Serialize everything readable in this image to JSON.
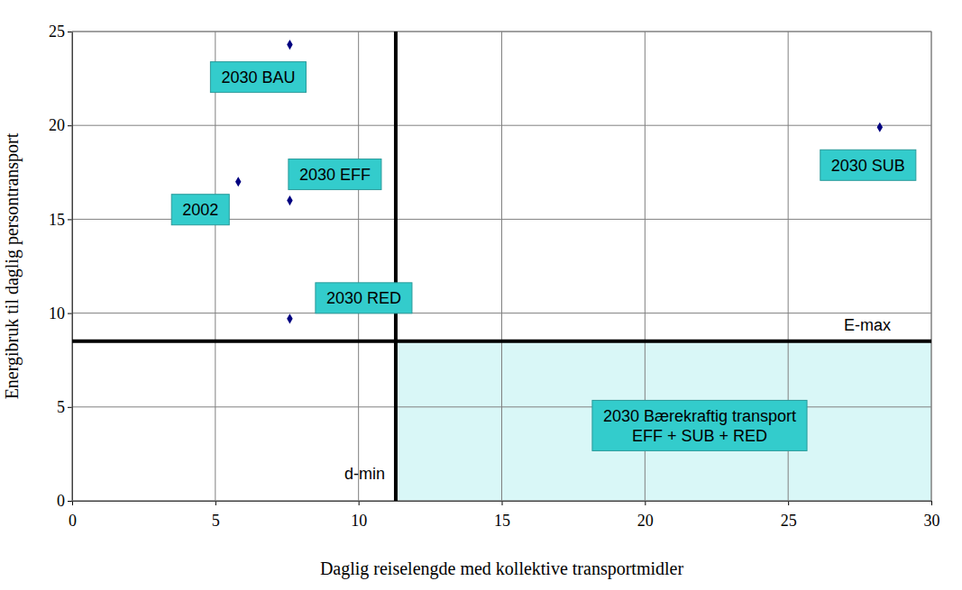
{
  "chart_data": {
    "type": "scatter",
    "x_label": "Daglig reiselengde med kollektive transportmidler",
    "y_label": "Energibruk til daglig persontransport",
    "x": [
      5.8,
      7.6,
      7.6,
      7.6,
      28.2
    ],
    "values": [
      17.0,
      24.3,
      16.0,
      9.7,
      19.9
    ],
    "point_labels": [
      "2002",
      "2030 BAU",
      "2030 EFF",
      "2030 RED",
      "2030 SUB"
    ],
    "color": "#000080",
    "marker": "diamond",
    "xlim": [
      0,
      30
    ],
    "ylim": [
      0,
      25
    ],
    "xticks": [
      0,
      5,
      10,
      15,
      20,
      25,
      30
    ],
    "yticks": [
      0,
      5,
      10,
      15,
      20,
      25
    ],
    "grid": true,
    "thresholds": [
      {
        "axis": "x",
        "value": 11.3,
        "label": "d-min"
      },
      {
        "axis": "y",
        "value": 8.5,
        "label": "E-max"
      }
    ],
    "region": {
      "label_lines": [
        "2030 Bærekraftig transport",
        "EFF + SUB + RED"
      ],
      "color": "#d9f7f7"
    }
  }
}
